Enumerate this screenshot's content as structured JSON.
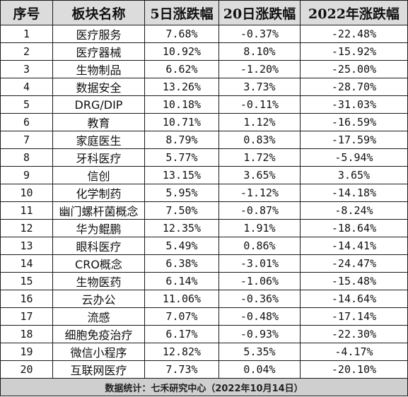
{
  "headers": [
    "序号",
    "板块名称",
    "5日涨跌幅",
    "20日涨跌幅",
    "2022年涨跌幅"
  ],
  "rows": [
    [
      "1",
      "医疗服务",
      "7.68%",
      "-0.37%",
      "-22.48%"
    ],
    [
      "2",
      "医疗器械",
      "10.92%",
      "8.10%",
      "-15.92%"
    ],
    [
      "3",
      "生物制品",
      "6.62%",
      "-1.20%",
      "-25.00%"
    ],
    [
      "4",
      "数据安全",
      "13.26%",
      "3.73%",
      "-28.70%"
    ],
    [
      "5",
      "DRG/DIP",
      "10.18%",
      "-0.11%",
      "-31.03%"
    ],
    [
      "6",
      "教育",
      "10.71%",
      "1.12%",
      "-16.59%"
    ],
    [
      "7",
      "家庭医生",
      "8.79%",
      "0.83%",
      "-17.59%"
    ],
    [
      "8",
      "牙科医疗",
      "5.77%",
      "1.72%",
      "-5.94%"
    ],
    [
      "9",
      "信创",
      "13.15%",
      "3.65%",
      "3.65%"
    ],
    [
      "10",
      "化学制药",
      "5.95%",
      "-1.12%",
      "-14.18%"
    ],
    [
      "11",
      "幽门螺杆菌概念",
      "7.50%",
      "-0.87%",
      "-8.24%"
    ],
    [
      "12",
      "华为鲲鹏",
      "12.35%",
      "1.91%",
      "-18.64%"
    ],
    [
      "13",
      "眼科医疗",
      "5.49%",
      "0.86%",
      "-14.41%"
    ],
    [
      "14",
      "CRO概念",
      "6.38%",
      "-3.01%",
      "-24.47%"
    ],
    [
      "15",
      "生物医药",
      "6.14%",
      "-1.06%",
      "-15.48%"
    ],
    [
      "16",
      "云办公",
      "11.06%",
      "-0.36%",
      "-14.64%"
    ],
    [
      "17",
      "流感",
      "7.07%",
      "-0.48%",
      "-17.14%"
    ],
    [
      "18",
      "细胞免疫治疗",
      "6.17%",
      "-0.93%",
      "-22.30%"
    ],
    [
      "19",
      "微信小程序",
      "12.82%",
      "5.35%",
      "-4.17%"
    ],
    [
      "20",
      "互联网医疗",
      "7.73%",
      "0.04%",
      "-20.10%"
    ]
  ],
  "footer": "数据统计：七禾研究中心（2022年10月14日）"
}
